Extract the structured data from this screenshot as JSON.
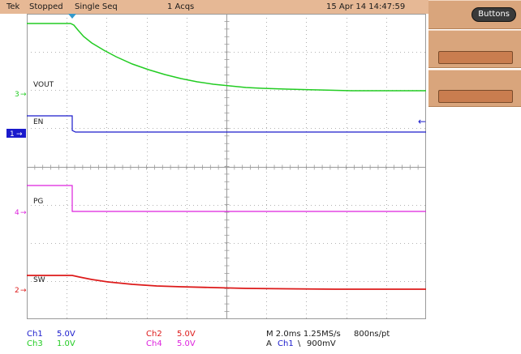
{
  "header": {
    "brand": "Tek",
    "state": "Stopped",
    "mode": "Single Seq",
    "acqs": "1 Acqs",
    "datetime": "15 Apr 14 14:47:59"
  },
  "side_panel": {
    "buttons_label": "Buttons"
  },
  "channels": {
    "vout_label": "VOUT",
    "en_label": "EN",
    "pg_label": "PG",
    "sw_label": "SW",
    "marker_3": "3",
    "marker_1": "1",
    "marker_4": "4",
    "marker_2": "2"
  },
  "readouts": {
    "ch1_name": "Ch1",
    "ch1_scale": "5.0V",
    "ch3_name": "Ch3",
    "ch3_scale": "1.0V",
    "ch2_name": "Ch2",
    "ch2_scale": "5.0V",
    "ch4_name": "Ch4",
    "ch4_scale": "5.0V",
    "timebase": "M 2.0ms 1.25MS/s",
    "record": "800ns/pt",
    "trigger_prefix": "A",
    "trigger_source": "Ch1",
    "trigger_slope": "\\",
    "trigger_level": "900mV"
  },
  "colors": {
    "ch1": "#1a1acc",
    "ch2": "#dd1a1a",
    "ch3": "#22cc22",
    "ch4": "#dd22dd",
    "grid": "#9a9a9a",
    "header_bg": "#e6b895",
    "trigger_marker": "#3399cc"
  }
}
